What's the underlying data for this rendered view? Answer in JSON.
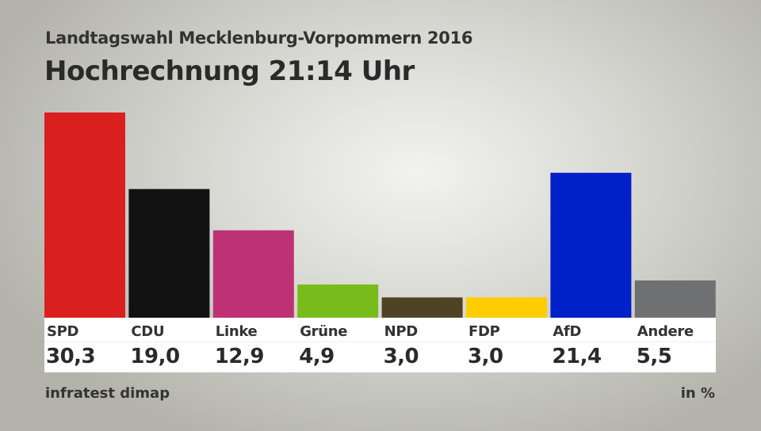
{
  "chart_data": {
    "type": "bar",
    "subtitle": "Landtagswahl Mecklenburg-Vorpommern 2016",
    "title": "Hochrechnung 21:14 Uhr",
    "categories": [
      "SPD",
      "CDU",
      "Linke",
      "Grüne",
      "NPD",
      "FDP",
      "AfD",
      "Andere"
    ],
    "values": [
      30.3,
      19.0,
      12.9,
      4.9,
      3.0,
      3.0,
      21.4,
      5.5
    ],
    "value_labels": [
      "30,3",
      "19,0",
      "12,9",
      "4,9",
      "3,0",
      "3,0",
      "21,4",
      "5,5"
    ],
    "colors": [
      "#d9201f",
      "#121212",
      "#bd3275",
      "#78bc1c",
      "#4e4325",
      "#ffcc00",
      "#0020c8",
      "#6f7072"
    ],
    "ylim": [
      0,
      30.3
    ],
    "grid": false,
    "legend": "none",
    "source": "infratest dimap",
    "unit": "in %"
  }
}
